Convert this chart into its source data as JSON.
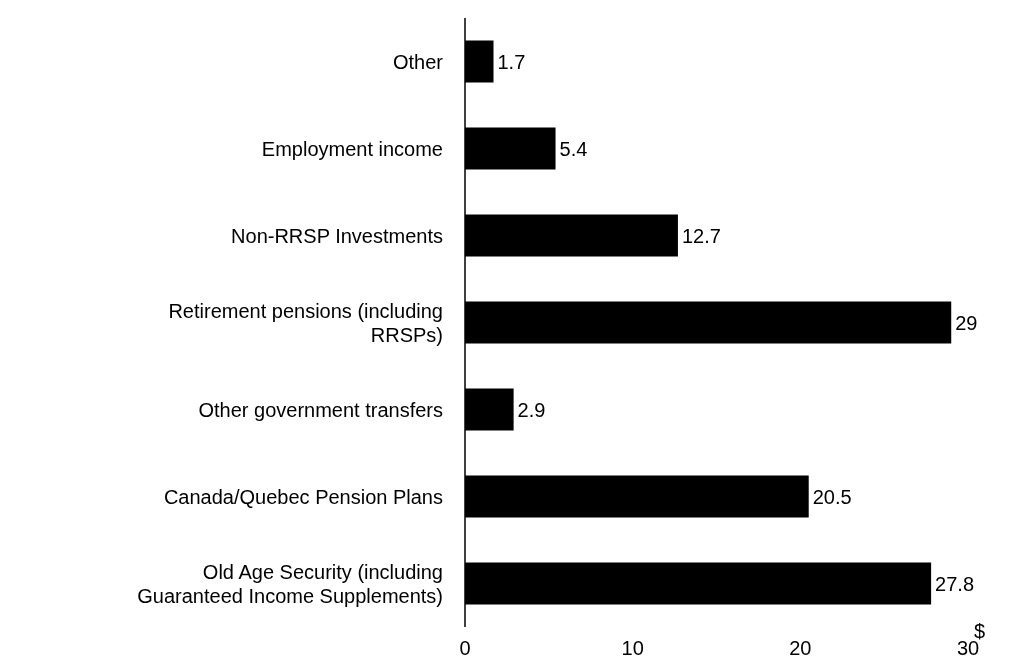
{
  "chart_data": {
    "type": "bar",
    "orientation": "horizontal",
    "xlabel": "$",
    "categories": [
      "Other",
      "Employment income",
      "Non-RRSP Investments",
      "Retirement pensions (including\nRRSPs)",
      "Other government transfers",
      "Canada/Quebec Pension Plans",
      "Old Age Security (including\nGuaranteed Income Supplements)"
    ],
    "values": [
      1.7,
      5.4,
      12.7,
      29,
      2.9,
      20.5,
      27.8
    ],
    "color": "#000000",
    "data_labels": true,
    "xlim": [
      0,
      30
    ],
    "xticks": [
      0,
      10,
      20,
      30
    ],
    "grid": false,
    "legend": false
  }
}
